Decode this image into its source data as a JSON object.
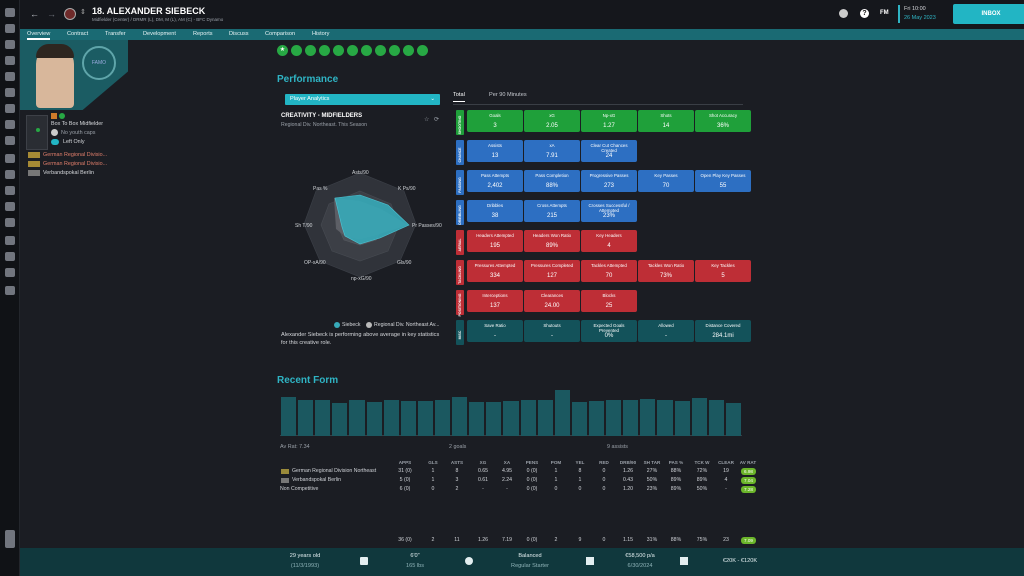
{
  "header": {
    "player_name": "18. ALEXANDER SIEBECK",
    "subtitle": "Midfielder (Center) / DRMR (L), DM, M (L), AM (C) - BFC Dynamo",
    "date_line1": "Fri 10:00",
    "date_line2": "26 May 2023",
    "inbox": "INBOX",
    "fm": "FM",
    "help": "?"
  },
  "nav": [
    "Overview",
    "Contract",
    "Transfer",
    "Development",
    "Reports",
    "Discuss",
    "Comparison",
    "History"
  ],
  "profile": {
    "role": "Box To Box Midfielder",
    "youth_caps": "No youth caps",
    "foot": "Left Only",
    "competitions": [
      "German Regional Divisio...",
      "German Regional Divisio...",
      "Verbandspokal Berlin"
    ],
    "club_badge": "FAMO"
  },
  "performance": {
    "title": "Performance",
    "dropdown": "Player Analytics",
    "tabs": [
      "Total",
      "Per 90 Minutes"
    ],
    "radar_title": "CREATIVITY - MIDFIELDERS",
    "radar_sub": "Regional Div. Northeast. This Season",
    "radar_labels": [
      "Asts/90",
      "K Ps/90",
      "Pr Passes/90",
      "Gls/90",
      "np-xG/90",
      "OP-xA/90",
      "Sh T/90",
      "Pas %"
    ],
    "legend": [
      "Siebeck",
      "Regional Div. Northeast Av..."
    ],
    "summary": "Alexander Siebeck is performing above average in key statistics for this creative role."
  },
  "categories": [
    "SHOOTING",
    "CHANCE",
    "PASSING",
    "DRIBBLING",
    "AERIAL",
    "TACKLING",
    "POSITIONING",
    "MISC"
  ],
  "tiles": [
    [
      [
        "Goals",
        "3",
        "g"
      ],
      [
        "xG",
        "2.05",
        "g"
      ],
      [
        "Np-xG",
        "1.27",
        "g"
      ],
      [
        "Shots",
        "14",
        "g"
      ],
      [
        "Shot Accuracy",
        "36%",
        "g"
      ]
    ],
    [
      [
        "Assists",
        "13",
        "b"
      ],
      [
        "xA",
        "7.91",
        "b"
      ],
      [
        "Clear Cut Chances Created",
        "24",
        "b"
      ]
    ],
    [
      [
        "Pass Attempts",
        "2,402",
        "b"
      ],
      [
        "Pass Completion",
        "88%",
        "b"
      ],
      [
        "Progressive Passes",
        "273",
        "b"
      ],
      [
        "Key Passes",
        "70",
        "b"
      ],
      [
        "Open Play Key Passes",
        "55",
        "b"
      ]
    ],
    [
      [
        "Dribbles",
        "38",
        "b"
      ],
      [
        "Cross Attempts",
        "215",
        "b"
      ],
      [
        "Crosses Successful / Attempted",
        "23%",
        "b"
      ]
    ],
    [
      [
        "Headers Attempted",
        "195",
        "r"
      ],
      [
        "Headers Won Ratio",
        "89%",
        "r"
      ],
      [
        "Key Headers",
        "4",
        "r"
      ]
    ],
    [
      [
        "Pressures Attempted",
        "334",
        "r"
      ],
      [
        "Pressures Completed",
        "127",
        "r"
      ],
      [
        "Tackles Attempted",
        "70",
        "r"
      ],
      [
        "Tackles Won Ratio",
        "73%",
        "r"
      ],
      [
        "Key Tackles",
        "5",
        "r"
      ]
    ],
    [
      [
        "Interceptions",
        "137",
        "r"
      ],
      [
        "Clearances",
        "24.00",
        "r"
      ],
      [
        "Blocks",
        "25",
        "r"
      ]
    ],
    [
      [
        "Save Ratio",
        "-",
        "t"
      ],
      [
        "Shutouts",
        "-",
        "t"
      ],
      [
        "Expected Goals Prevented",
        "0%",
        "t"
      ],
      [
        "Allowed",
        "-",
        "t"
      ],
      [
        "Distance Covered",
        "284.1mi",
        "t"
      ]
    ]
  ],
  "form": {
    "title": "Recent Form",
    "bars": [
      0.84,
      0.78,
      0.79,
      0.72,
      0.79,
      0.74,
      0.78,
      0.77,
      0.76,
      0.78,
      0.84,
      0.73,
      0.75,
      0.77,
      0.79,
      0.78,
      1.0,
      0.74,
      0.77,
      0.78,
      0.78,
      0.8,
      0.79,
      0.77,
      0.82,
      0.78,
      0.72
    ],
    "summary": [
      "Av Rat: 7.34",
      "2 goals",
      "9 assists"
    ]
  },
  "stats": {
    "headers": [
      "APPS",
      "GLS",
      "ASTS",
      "XG",
      "XA",
      "PENS",
      "POM",
      "YEL",
      "RED",
      "DRB/90",
      "SH TAR",
      "PAS %",
      "TCK W",
      "CLEAR",
      "AV RAT"
    ],
    "rows": [
      {
        "name": "German Regional Division Northeast",
        "vals": [
          "31 (0)",
          "1",
          "8",
          "0.65",
          "4.95",
          "0 (0)",
          "1",
          "8",
          "0",
          "1.26",
          "27%",
          "88%",
          "72%",
          "19",
          "6.98"
        ]
      },
      {
        "name": "Verbandspokal Berlin",
        "vals": [
          "5 (0)",
          "1",
          "3",
          "0.61",
          "2.24",
          "0 (0)",
          "1",
          "1",
          "0",
          "0.43",
          "50%",
          "89%",
          "89%",
          "4",
          "7.04"
        ]
      },
      {
        "name": "Non Competitive",
        "vals": [
          "6 (0)",
          "0",
          "2",
          "-",
          "-",
          "0 (0)",
          "0",
          "0",
          "0",
          "1.20",
          "23%",
          "89%",
          "50%",
          "-",
          "7.28"
        ]
      }
    ],
    "total": [
      "36 (0)",
      "2",
      "11",
      "1.26",
      "7.19",
      "0 (0)",
      "2",
      "9",
      "0",
      "1.15",
      "31%",
      "88%",
      "75%",
      "23",
      "7.09"
    ]
  },
  "footer": {
    "age": "29 years old",
    "dob": "(11/3/1993)",
    "height": "6'0\"",
    "weight": "165 lbs",
    "personality": "Balanced",
    "status": "Regular Starter",
    "wage": "€58,500 p/a",
    "expires": "6/30/2024",
    "value": "€20K - €120K"
  },
  "colors": {
    "accent": "#2fb4c4",
    "green": "#1fa03a",
    "blue": "#2d6fc2",
    "red": "#be2e36",
    "teal": "#13525a"
  }
}
